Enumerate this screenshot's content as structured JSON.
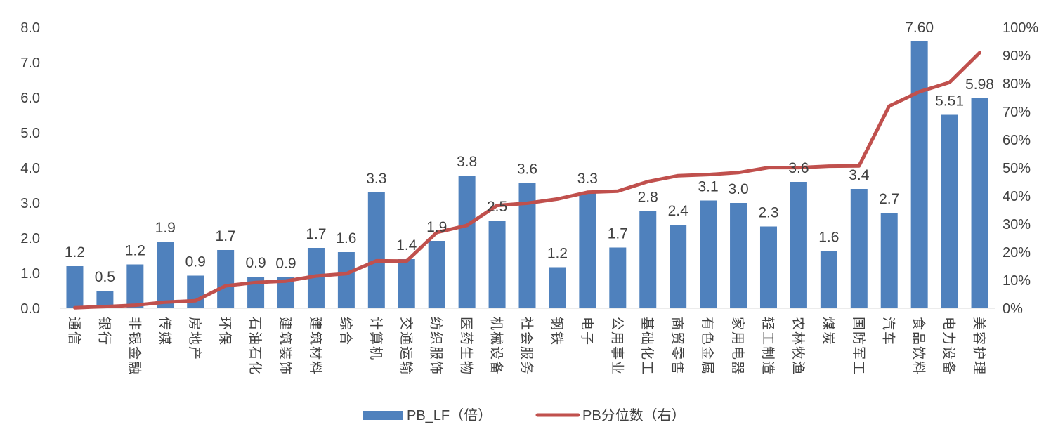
{
  "chart_data": {
    "type": "bar+line",
    "title": "",
    "categories": [
      "通信",
      "银行",
      "非银金融",
      "传媒",
      "房地产",
      "环保",
      "石油石化",
      "建筑装饰",
      "建筑材料",
      "综合",
      "计算机",
      "交通运输",
      "纺织服饰",
      "医药生物",
      "机械设备",
      "社会服务",
      "钢铁",
      "电子",
      "公用事业",
      "基础化工",
      "商贸零售",
      "有色金属",
      "家用电器",
      "轻工制造",
      "农林牧渔",
      "煤炭",
      "国防军工",
      "汽车",
      "食品饮料",
      "电力设备",
      "美容护理"
    ],
    "series": [
      {
        "name": "PB_LF（倍）",
        "type": "bar",
        "axis": "left",
        "color": "#4F81BD",
        "values": [
          1.2,
          0.5,
          1.25,
          1.9,
          0.93,
          1.66,
          0.9,
          0.88,
          1.72,
          1.6,
          3.3,
          1.4,
          1.92,
          3.78,
          2.5,
          3.57,
          1.17,
          3.3,
          1.73,
          2.77,
          2.38,
          3.07,
          3.0,
          2.33,
          3.6,
          1.63,
          3.4,
          2.72,
          7.6,
          5.51,
          5.98
        ],
        "labels": [
          "1.2",
          "0.5",
          "1.2",
          "1.9",
          "0.9",
          "1.7",
          "0.9",
          "0.9",
          "1.7",
          "1.6",
          "3.3",
          "1.4",
          "1.9",
          "3.8",
          "2.5",
          "3.6",
          "1.2",
          "3.3",
          "1.7",
          "2.8",
          "2.4",
          "3.1",
          "3.0",
          "2.3",
          "3.6",
          "1.6",
          "3.4",
          "2.7",
          "7.60",
          "5.51",
          "5.98"
        ]
      },
      {
        "name": "PB分位数（右）",
        "type": "line",
        "axis": "right",
        "color": "#C0504D",
        "values": [
          0.2,
          0.6,
          1.1,
          2.2,
          2.7,
          8.0,
          9.2,
          9.7,
          11.5,
          12.3,
          16.9,
          16.8,
          27.0,
          29.5,
          36.6,
          37.4,
          38.9,
          41.3,
          41.7,
          45.1,
          47.2,
          47.6,
          48.3,
          50.1,
          50.1,
          50.6,
          50.7,
          72.0,
          77.1,
          80.4,
          91.0
        ]
      }
    ],
    "y_left": {
      "min": 0,
      "max": 8,
      "step": 1,
      "ticks": [
        "0.0",
        "1.0",
        "2.0",
        "3.0",
        "4.0",
        "5.0",
        "6.0",
        "7.0",
        "8.0"
      ]
    },
    "y_right": {
      "min": 0,
      "max": 100,
      "step": 10,
      "ticks": [
        "0%",
        "10%",
        "20%",
        "30%",
        "40%",
        "50%",
        "60%",
        "70%",
        "80%",
        "90%",
        "100%"
      ]
    },
    "legend": {
      "position": "bottom",
      "items": [
        "PB_LF（倍）",
        "PB分位数（右）"
      ]
    },
    "grid": false
  }
}
